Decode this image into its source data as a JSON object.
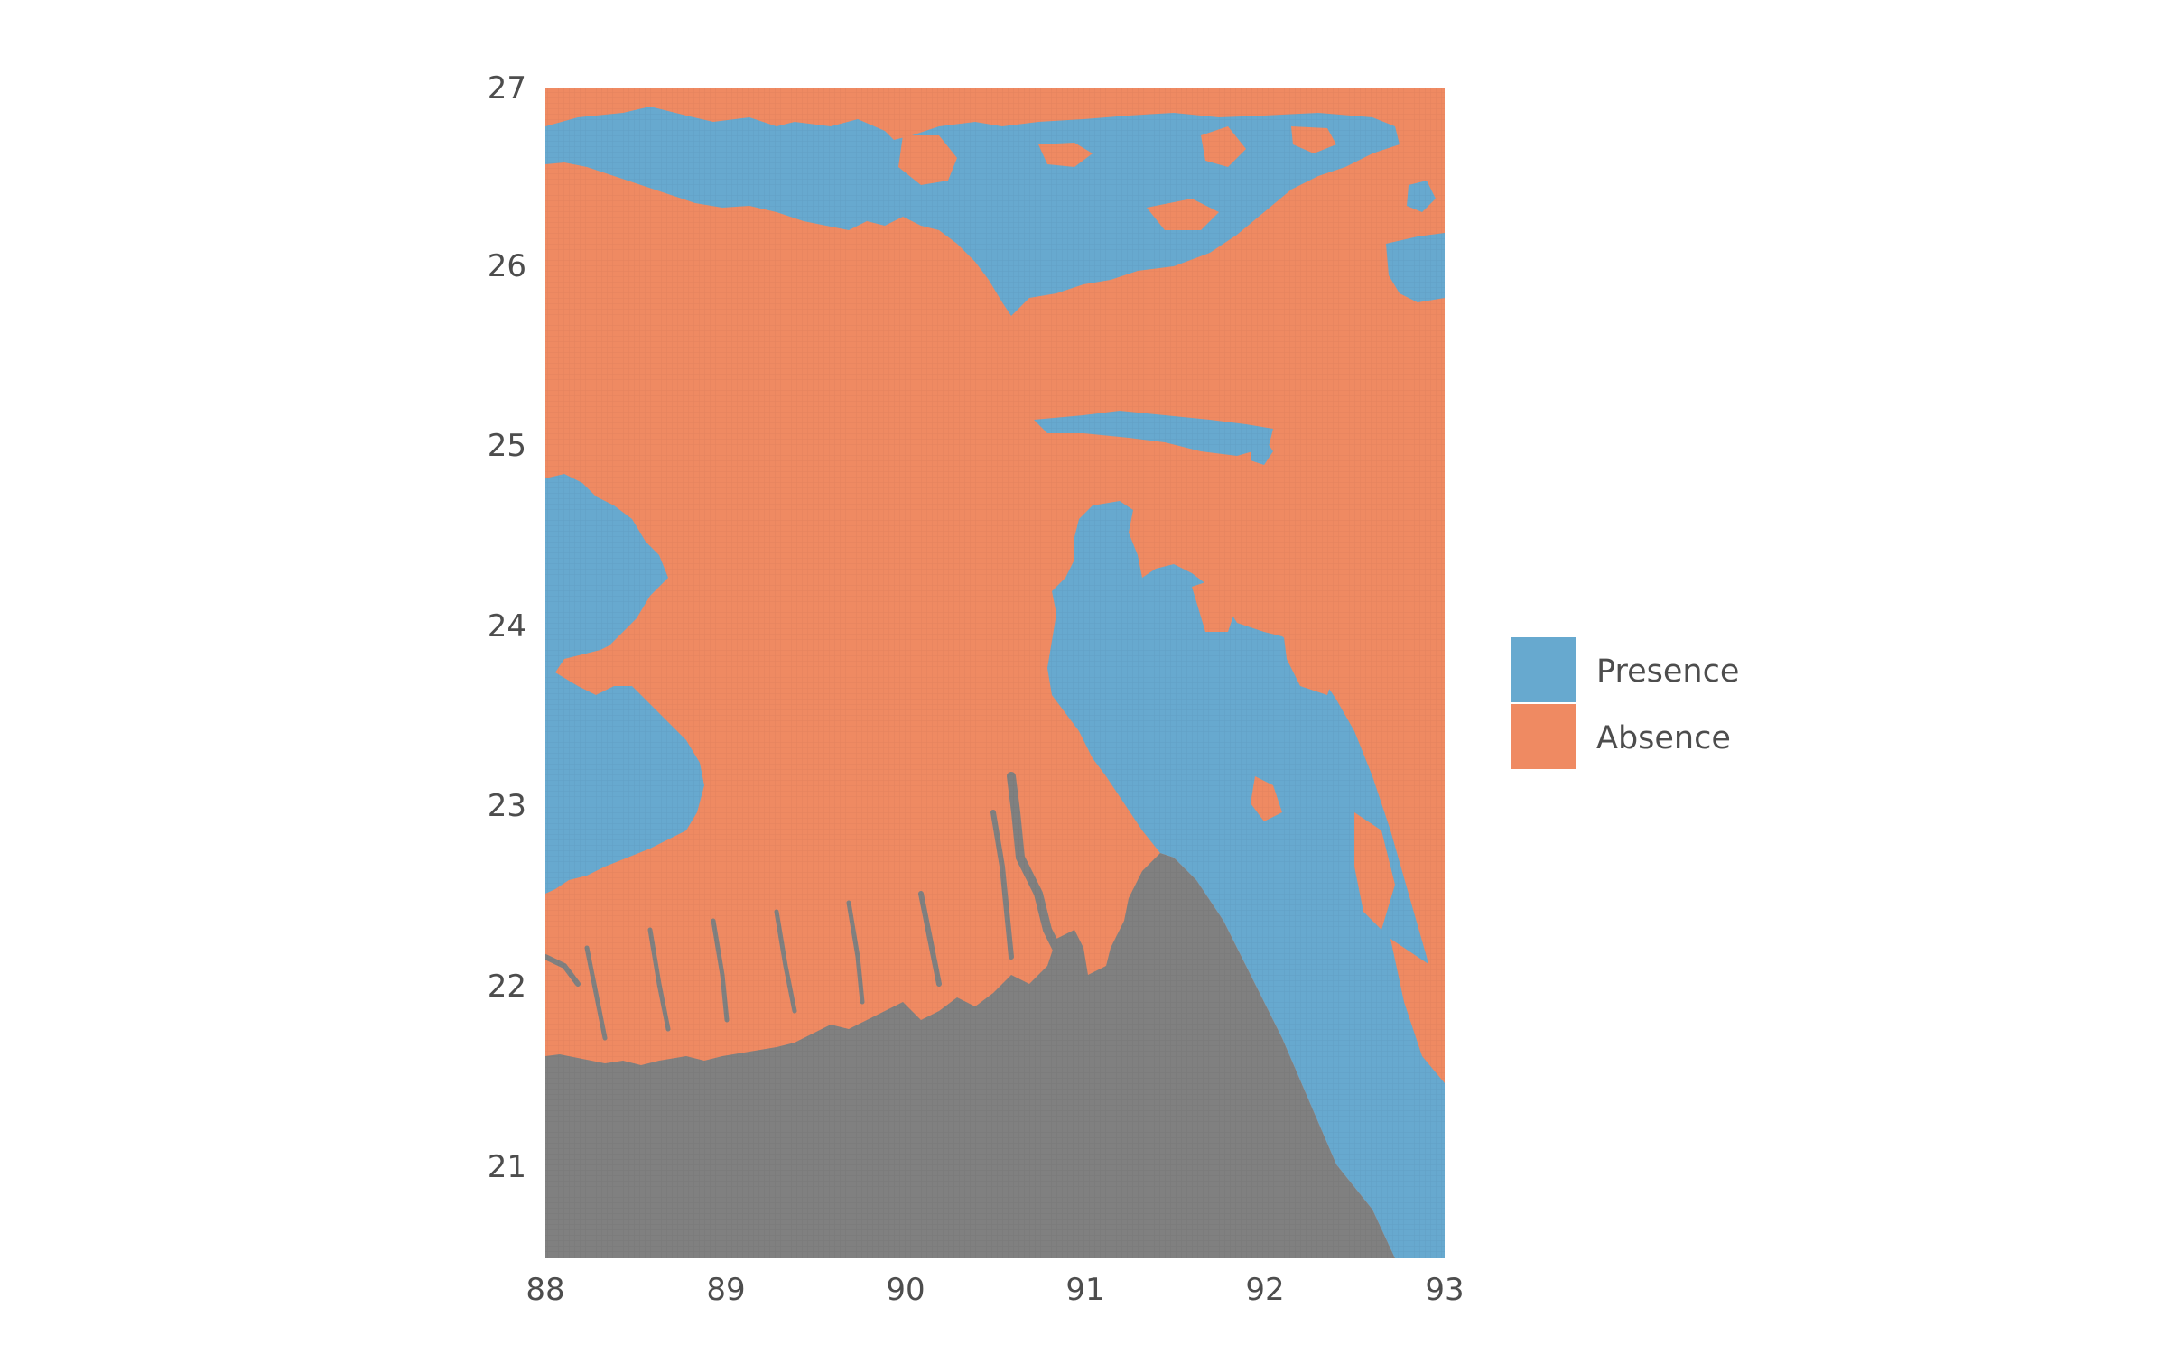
{
  "map": {
    "x_axis": {
      "min": 88,
      "max": 93,
      "ticks": [
        "88",
        "89",
        "90",
        "91",
        "92",
        "93"
      ]
    },
    "y_axis": {
      "min": 20.5,
      "max": 27,
      "ticks": [
        "21",
        "22",
        "23",
        "24",
        "25",
        "26",
        "27"
      ]
    },
    "colors": {
      "presence": "#67a9cf",
      "absence": "#ef8a62",
      "sea": "#808080"
    },
    "layers": [
      "sea",
      "absence",
      "presence"
    ]
  },
  "legend": {
    "items": [
      {
        "key": "presence",
        "label": "Presence",
        "color": "#67a9cf"
      },
      {
        "key": "absence",
        "label": "Absence",
        "color": "#ef8a62"
      }
    ]
  }
}
